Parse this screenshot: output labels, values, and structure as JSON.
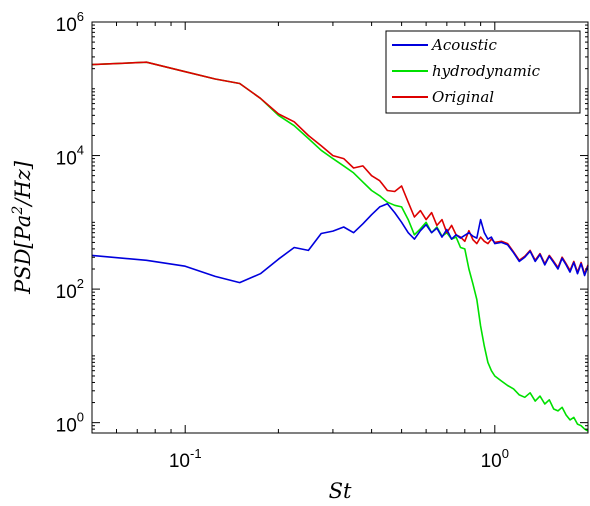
{
  "chart_data": {
    "type": "line",
    "xscale": "log",
    "yscale": "log",
    "xlim": [
      0.05,
      2.0
    ],
    "ylim": [
      0.7,
      1000000
    ],
    "xlabel": "St",
    "ylabel": "PSD[Pa^2/Hz]",
    "xticks": [
      {
        "value": 0.1,
        "base": "10",
        "exp": "-1"
      },
      {
        "value": 1,
        "base": "10",
        "exp": "0"
      }
    ],
    "yticks": [
      {
        "value": 1,
        "base": "10",
        "exp": "0"
      },
      {
        "value": 100,
        "base": "10",
        "exp": "2"
      },
      {
        "value": 10000,
        "base": "10",
        "exp": "4"
      },
      {
        "value": 1000000,
        "base": "10",
        "exp": "6"
      }
    ],
    "legend_position": "top-right",
    "grid": false,
    "series": [
      {
        "name": "Acoustic",
        "color": "#0000dd",
        "x": [
          0.05,
          0.075,
          0.1,
          0.125,
          0.15,
          0.175,
          0.2,
          0.225,
          0.25,
          0.275,
          0.3,
          0.325,
          0.35,
          0.375,
          0.4,
          0.425,
          0.45,
          0.475,
          0.5,
          0.525,
          0.55,
          0.575,
          0.6,
          0.625,
          0.65,
          0.675,
          0.7,
          0.725,
          0.75,
          0.775,
          0.8,
          0.825,
          0.85,
          0.875,
          0.9,
          0.925,
          0.95,
          0.975,
          1.0,
          1.05,
          1.1,
          1.15,
          1.2,
          1.25,
          1.3,
          1.35,
          1.4,
          1.45,
          1.5,
          1.55,
          1.6,
          1.65,
          1.7,
          1.75,
          1.8,
          1.85,
          1.9,
          1.95,
          2.0
        ],
        "y": [
          320,
          270,
          220,
          155,
          125,
          170,
          280,
          420,
          380,
          680,
          740,
          850,
          700,
          950,
          1300,
          1700,
          1900,
          1400,
          1000,
          700,
          560,
          750,
          920,
          700,
          820,
          600,
          780,
          560,
          650,
          580,
          640,
          700,
          620,
          580,
          1100,
          700,
          560,
          600,
          480,
          500,
          460,
          350,
          260,
          300,
          370,
          260,
          330,
          230,
          310,
          250,
          200,
          290,
          230,
          180,
          250,
          170,
          240,
          160,
          220
        ]
      },
      {
        "name": "hydrodynamic",
        "color": "#00e000",
        "x": [
          0.05,
          0.075,
          0.1,
          0.125,
          0.15,
          0.175,
          0.2,
          0.225,
          0.25,
          0.275,
          0.3,
          0.325,
          0.35,
          0.375,
          0.4,
          0.425,
          0.45,
          0.475,
          0.5,
          0.525,
          0.55,
          0.575,
          0.6,
          0.625,
          0.65,
          0.675,
          0.7,
          0.725,
          0.75,
          0.775,
          0.8,
          0.825,
          0.85,
          0.875,
          0.9,
          0.925,
          0.95,
          0.975,
          1.0,
          1.05,
          1.1,
          1.15,
          1.2,
          1.25,
          1.3,
          1.35,
          1.4,
          1.45,
          1.5,
          1.55,
          1.6,
          1.65,
          1.7,
          1.75,
          1.8,
          1.85,
          1.9,
          1.95,
          2.0
        ],
        "y": [
          230000,
          250000,
          180000,
          140000,
          120000,
          72000,
          40000,
          28000,
          18000,
          12000,
          9000,
          7000,
          5500,
          4000,
          3000,
          2500,
          2000,
          1800,
          1700,
          1100,
          650,
          800,
          1000,
          700,
          850,
          620,
          700,
          560,
          600,
          420,
          400,
          200,
          120,
          70,
          28,
          14,
          8,
          6,
          5,
          4.2,
          3.6,
          3.2,
          2.6,
          2.4,
          2.8,
          2.1,
          2.5,
          1.9,
          2.2,
          1.6,
          1.5,
          1.7,
          1.3,
          1.1,
          1.2,
          0.95,
          0.9,
          0.8,
          0.75
        ]
      },
      {
        "name": "Original",
        "color": "#dd0000",
        "x": [
          0.05,
          0.075,
          0.1,
          0.125,
          0.15,
          0.175,
          0.2,
          0.225,
          0.25,
          0.275,
          0.3,
          0.325,
          0.35,
          0.375,
          0.4,
          0.425,
          0.45,
          0.475,
          0.5,
          0.525,
          0.55,
          0.575,
          0.6,
          0.625,
          0.65,
          0.675,
          0.7,
          0.725,
          0.75,
          0.775,
          0.8,
          0.825,
          0.85,
          0.875,
          0.9,
          0.925,
          0.95,
          0.975,
          1.0,
          1.05,
          1.1,
          1.15,
          1.2,
          1.25,
          1.3,
          1.35,
          1.4,
          1.45,
          1.5,
          1.55,
          1.6,
          1.65,
          1.7,
          1.75,
          1.8,
          1.85,
          1.9,
          1.95,
          2.0
        ],
        "y": [
          230000,
          250000,
          180000,
          140000,
          120000,
          72000,
          42000,
          32000,
          20000,
          14000,
          10000,
          9000,
          6500,
          7000,
          5000,
          4200,
          3000,
          2900,
          3500,
          2000,
          1200,
          1500,
          1100,
          1400,
          900,
          1100,
          700,
          900,
          650,
          600,
          520,
          750,
          550,
          480,
          600,
          520,
          480,
          560,
          500,
          520,
          480,
          360,
          270,
          310,
          380,
          270,
          340,
          240,
          320,
          260,
          210,
          300,
          240,
          190,
          260,
          180,
          250,
          170,
          230
        ]
      }
    ]
  }
}
